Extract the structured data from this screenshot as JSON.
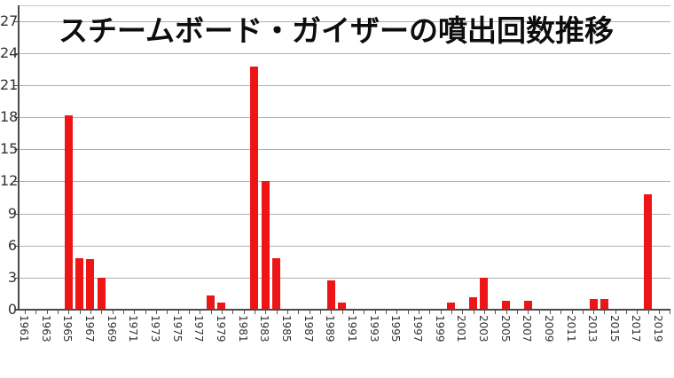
{
  "chart_data": {
    "type": "bar",
    "title": "スチームボード・ガイザーの噴出回数推移",
    "xlabel": "",
    "ylabel": "",
    "legend": "none",
    "grid": "horizontal",
    "ylim": [
      0,
      28.5
    ],
    "yticks": [
      0,
      3,
      6,
      9,
      12,
      15,
      18,
      21,
      24,
      27
    ],
    "x_axis": {
      "first_year": 1961,
      "last_labeled_year": 2019,
      "last_tick_year": 2020,
      "label_every_years": 2,
      "tick_every_years": 1
    },
    "data": [
      {
        "year": 1965,
        "value": 18.2
      },
      {
        "year": 1966,
        "value": 4.8
      },
      {
        "year": 1967,
        "value": 4.7
      },
      {
        "year": 1968,
        "value": 3.0
      },
      {
        "year": 1978,
        "value": 1.3
      },
      {
        "year": 1979,
        "value": 0.7
      },
      {
        "year": 1982,
        "value": 22.7
      },
      {
        "year": 1983,
        "value": 12.0
      },
      {
        "year": 1984,
        "value": 4.8
      },
      {
        "year": 1989,
        "value": 2.7
      },
      {
        "year": 1990,
        "value": 0.7
      },
      {
        "year": 2000,
        "value": 0.7
      },
      {
        "year": 2002,
        "value": 1.2
      },
      {
        "year": 2003,
        "value": 3.0
      },
      {
        "year": 2005,
        "value": 0.8
      },
      {
        "year": 2007,
        "value": 0.8
      },
      {
        "year": 2013,
        "value": 1.0
      },
      {
        "year": 2014,
        "value": 1.0
      },
      {
        "year": 2018,
        "value": 10.8
      }
    ],
    "colors": {
      "bar": "#ed1515",
      "gridline": "#b0b0b0",
      "axis": "#4a4a4a",
      "tick_label": "#333333",
      "title_text": "#0d0d0d",
      "background": "#ffffff"
    }
  }
}
